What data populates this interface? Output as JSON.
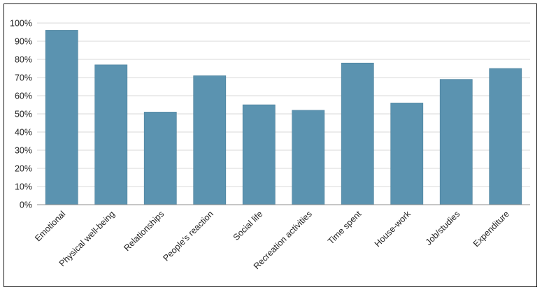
{
  "chart_data": {
    "type": "bar",
    "title": "",
    "xlabel": "",
    "ylabel": "",
    "categories": [
      "Emotional",
      "Physical well-being",
      "Relationships",
      "People's reaction",
      "Social life",
      "Recreation activities",
      "Time spent",
      "House-work",
      "Job/studies",
      "Expenditure"
    ],
    "values": [
      96,
      77,
      51,
      71,
      55,
      52,
      78,
      56,
      69,
      75
    ],
    "value_unit": "%",
    "ylim": [
      0,
      100
    ],
    "yticks": [
      "0%",
      "10%",
      "20%",
      "30%",
      "40%",
      "50%",
      "60%",
      "70%",
      "80%",
      "90%",
      "100%"
    ],
    "grid": true,
    "legend": "none",
    "bar_color": "#5b93b0",
    "grid_color": "#d9d9d9",
    "axis_color": "#8c8c8c"
  }
}
